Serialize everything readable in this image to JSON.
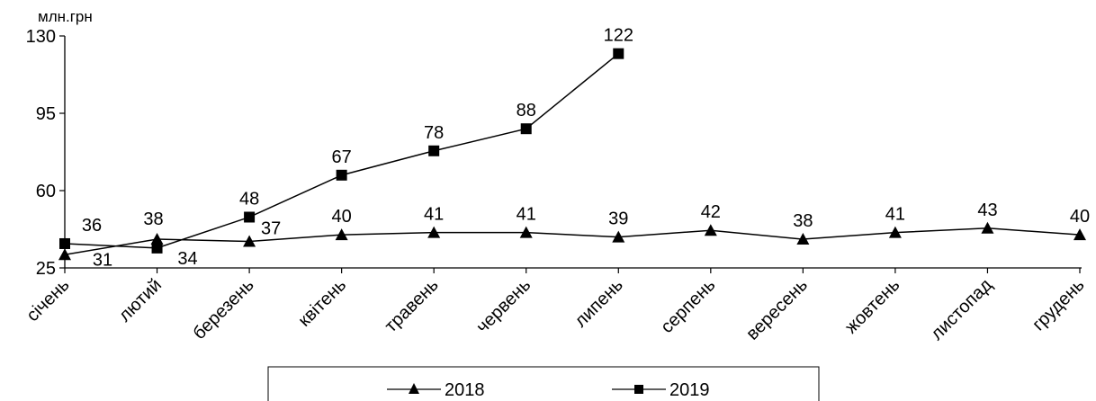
{
  "chart_data": {
    "type": "line",
    "unit_label": "млн.грн",
    "categories": [
      "січень",
      "лютий",
      "березень",
      "квітень",
      "травень",
      "червень",
      "липень",
      "серпень",
      "вересень",
      "жовтень",
      "листопад",
      "грудень"
    ],
    "ylim": [
      25,
      130
    ],
    "yticks": [
      25,
      60,
      95,
      130
    ],
    "grid": false,
    "legend_position": "bottom",
    "series": [
      {
        "name": "2018",
        "marker": "triangle",
        "color": "#000000",
        "values": [
          31,
          38,
          37,
          40,
          41,
          41,
          39,
          42,
          38,
          41,
          43,
          40
        ]
      },
      {
        "name": "2019",
        "marker": "square",
        "color": "#000000",
        "values": [
          36,
          34,
          48,
          67,
          78,
          88,
          122,
          null,
          null,
          null,
          null,
          null
        ]
      }
    ]
  }
}
